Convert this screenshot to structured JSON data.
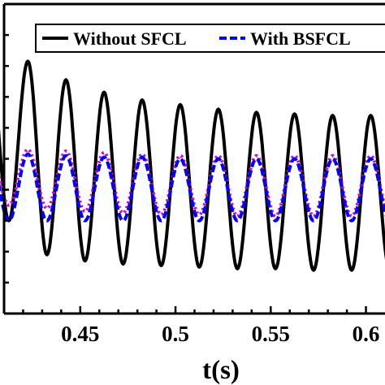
{
  "chart_data": {
    "type": "line",
    "xlabel": "t(s)",
    "xlim": [
      0.41,
      0.61
    ],
    "xticks": [
      0.45,
      0.5,
      0.55,
      0.6
    ],
    "xtick_labels": [
      "0.45",
      "0.5",
      "0.55",
      "0.6"
    ],
    "ylim": [
      -1,
      1
    ],
    "legend_position": "top-right",
    "frequency_hz": 50,
    "series": [
      {
        "name": "Without SFCL",
        "color": "#000000",
        "style": "solid",
        "peaks": [
          {
            "t": 0.4225,
            "v": 0.63
          },
          {
            "t": 0.4425,
            "v": 0.51
          },
          {
            "t": 0.4625,
            "v": 0.43
          },
          {
            "t": 0.4825,
            "v": 0.38
          },
          {
            "t": 0.5025,
            "v": 0.35
          },
          {
            "t": 0.5225,
            "v": 0.32
          },
          {
            "t": 0.5425,
            "v": 0.3
          },
          {
            "t": 0.5625,
            "v": 0.29
          },
          {
            "t": 0.5825,
            "v": 0.28
          },
          {
            "t": 0.6025,
            "v": 0.28
          }
        ],
        "troughs": [
          {
            "t": 0.4125,
            "v": -0.4
          },
          {
            "t": 0.4325,
            "v": -0.62
          },
          {
            "t": 0.4525,
            "v": -0.66
          },
          {
            "t": 0.4725,
            "v": -0.68
          },
          {
            "t": 0.4925,
            "v": -0.69
          },
          {
            "t": 0.5125,
            "v": -0.7
          },
          {
            "t": 0.5325,
            "v": -0.71
          },
          {
            "t": 0.5525,
            "v": -0.71
          },
          {
            "t": 0.5725,
            "v": -0.72
          },
          {
            "t": 0.5925,
            "v": -0.72
          }
        ]
      },
      {
        "name": "With BSFCL",
        "color": "#0000ff",
        "style": "dashed",
        "peaks": [
          {
            "t": 0.4225,
            "v": 0.03
          },
          {
            "t": 0.4425,
            "v": 0.02
          },
          {
            "t": 0.4625,
            "v": 0.01
          },
          {
            "t": 0.4825,
            "v": 0.01
          },
          {
            "t": 0.5025,
            "v": 0.0
          },
          {
            "t": 0.5225,
            "v": 0.0
          },
          {
            "t": 0.5425,
            "v": 0.0
          },
          {
            "t": 0.5625,
            "v": 0.0
          },
          {
            "t": 0.5825,
            "v": 0.0
          },
          {
            "t": 0.6025,
            "v": 0.0
          }
        ],
        "troughs": [
          {
            "t": 0.4125,
            "v": -0.4
          },
          {
            "t": 0.4325,
            "v": -0.4
          },
          {
            "t": 0.4525,
            "v": -0.4
          },
          {
            "t": 0.4725,
            "v": -0.4
          },
          {
            "t": 0.4925,
            "v": -0.4
          },
          {
            "t": 0.5125,
            "v": -0.4
          },
          {
            "t": 0.5325,
            "v": -0.4
          },
          {
            "t": 0.5525,
            "v": -0.4
          },
          {
            "t": 0.5725,
            "v": -0.4
          },
          {
            "t": 0.5925,
            "v": -0.4
          }
        ]
      },
      {
        "name": "",
        "color": "#d400d4",
        "style": "dotted",
        "peaks": [
          {
            "t": 0.4225,
            "v": 0.06
          },
          {
            "t": 0.4425,
            "v": 0.05
          },
          {
            "t": 0.4625,
            "v": 0.04
          },
          {
            "t": 0.4825,
            "v": 0.03
          },
          {
            "t": 0.5025,
            "v": 0.02
          },
          {
            "t": 0.5225,
            "v": 0.02
          },
          {
            "t": 0.5425,
            "v": 0.02
          },
          {
            "t": 0.5625,
            "v": 0.02
          },
          {
            "t": 0.5825,
            "v": 0.02
          },
          {
            "t": 0.6025,
            "v": 0.02
          }
        ],
        "troughs": [
          {
            "t": 0.4125,
            "v": -0.3
          },
          {
            "t": 0.4325,
            "v": -0.32
          },
          {
            "t": 0.4525,
            "v": -0.34
          },
          {
            "t": 0.4725,
            "v": -0.35
          },
          {
            "t": 0.4925,
            "v": -0.36
          },
          {
            "t": 0.5125,
            "v": -0.36
          },
          {
            "t": 0.5325,
            "v": -0.37
          },
          {
            "t": 0.5525,
            "v": -0.37
          },
          {
            "t": 0.5725,
            "v": -0.37
          },
          {
            "t": 0.5925,
            "v": -0.37
          }
        ]
      }
    ]
  }
}
